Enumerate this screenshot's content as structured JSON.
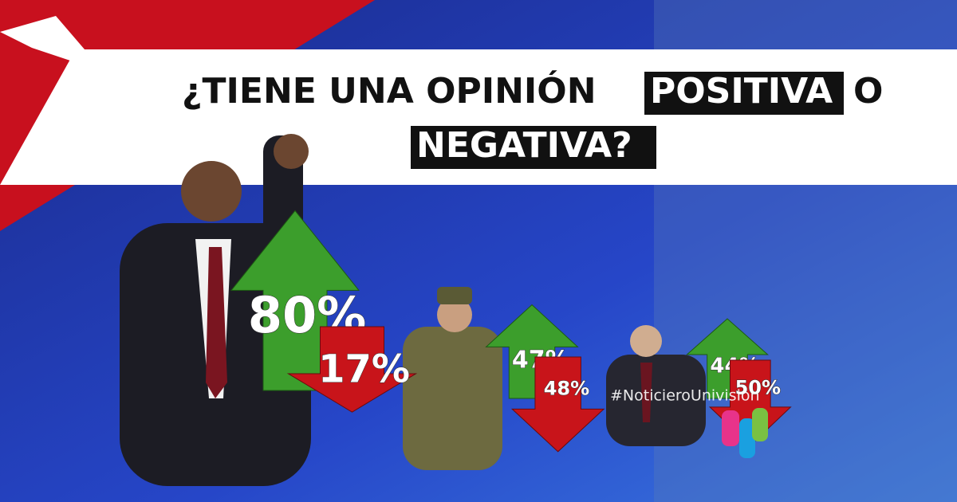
{
  "chart_data": {
    "type": "arrow",
    "title": [
      "¿TIENE UNA OPINIÓN",
      "POSITIVA",
      "O",
      "NEGATIVA?"
    ],
    "watermark": "#NoticieroUnivision",
    "categories": [
      null,
      null,
      null
    ],
    "series": [
      {
        "color": "#3c9e2c",
        "values": [
          80,
          47,
          44
        ],
        "value_labels": [
          "80%",
          "47%",
          "44%"
        ]
      },
      {
        "color": "#c8141a",
        "values": [
          17,
          48,
          50
        ],
        "value_labels": [
          "17%",
          "48%",
          "50%"
        ]
      }
    ]
  }
}
